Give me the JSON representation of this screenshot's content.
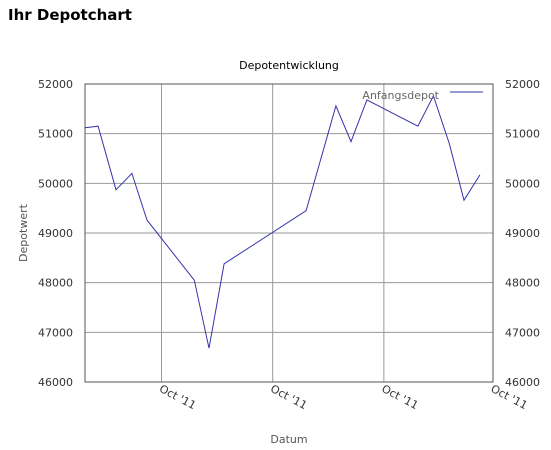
{
  "page": {
    "title": "Ihr Depotchart"
  },
  "colors": {
    "series": "#3333aa",
    "grid": "#9a9a9a",
    "axis": "#555555"
  },
  "chart_data": {
    "type": "line",
    "title": "Depotentwicklung",
    "xlabel": "Datum",
    "ylabel": "Depotwert",
    "ylim": [
      46000,
      52000
    ],
    "yticks": [
      46000,
      47000,
      48000,
      49000,
      50000,
      51000,
      52000
    ],
    "xlim": [
      0,
      100
    ],
    "xticks": [
      {
        "x": 18.75,
        "label": "Oct '11"
      },
      {
        "x": 46.0,
        "label": "Oct '11"
      },
      {
        "x": 73.25,
        "label": "Oct '11"
      },
      {
        "x": 100.0,
        "label": "Oct '11"
      }
    ],
    "grid": true,
    "legend_position": "top-right",
    "series": [
      {
        "name": "Anfangsdepot",
        "x": [
          0,
          3.2,
          7.6,
          11.5,
          15.2,
          26.8,
          30.4,
          34.1,
          54.2,
          61.5,
          65.2,
          69.1,
          81.6,
          85.4,
          89.3,
          92.9,
          96.8
        ],
        "values": [
          51120,
          51150,
          49870,
          50200,
          49260,
          48050,
          46680,
          48380,
          49450,
          51560,
          50840,
          51680,
          51150,
          51760,
          50800,
          49660,
          50170
        ]
      }
    ]
  }
}
